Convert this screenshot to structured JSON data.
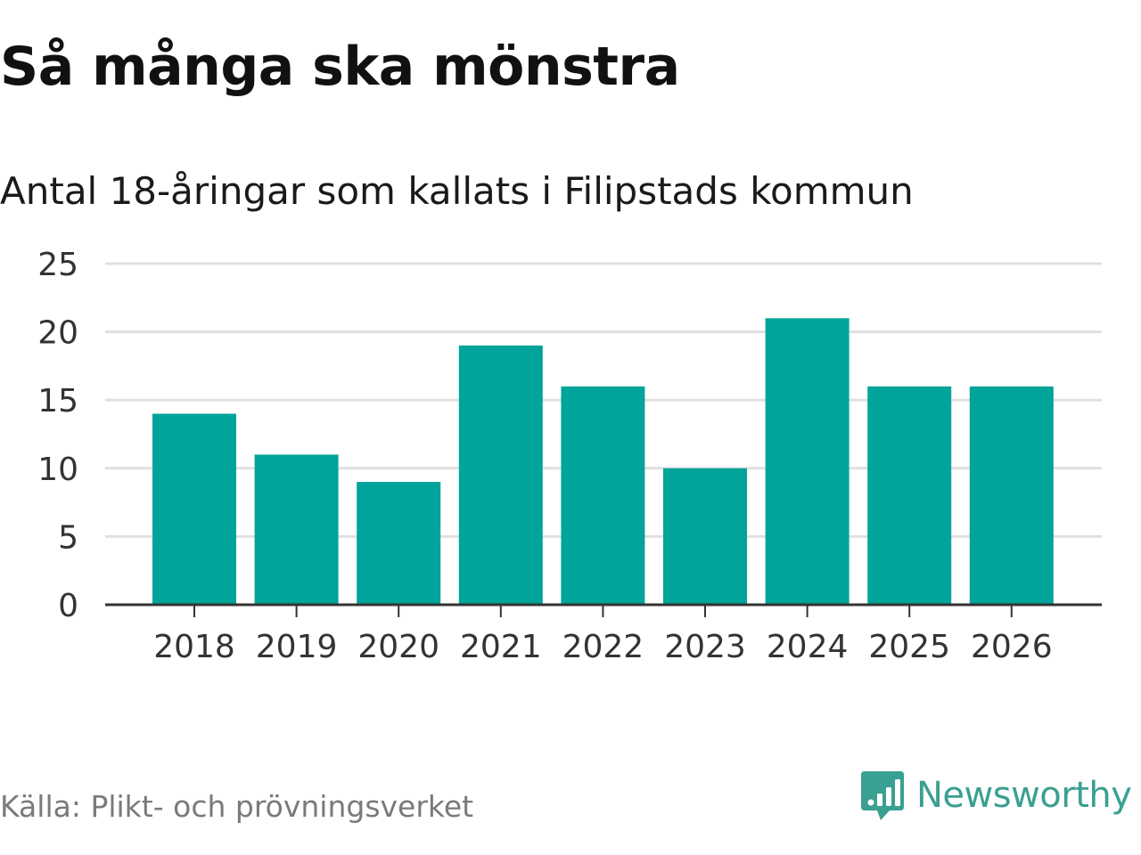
{
  "title": "Så många ska mönstra",
  "subtitle": "Antal 18-åringar som kallats i Filipstads kommun",
  "source": "Källa: Plikt- och prövningsverket",
  "brand": {
    "name": "Newsworthy",
    "icon": "newsworthy-logo-icon",
    "color": "#3aa091"
  },
  "colors": {
    "bar": "#00a49a",
    "grid": "#e0e0e0",
    "axis": "#333333"
  },
  "chart_data": {
    "type": "bar",
    "title": "Så många ska mönstra",
    "subtitle": "Antal 18-åringar som kallats i Filipstads kommun",
    "xlabel": "",
    "ylabel": "",
    "categories": [
      "2018",
      "2019",
      "2020",
      "2021",
      "2022",
      "2023",
      "2024",
      "2025",
      "2026"
    ],
    "values": [
      14,
      11,
      9,
      19,
      16,
      10,
      21,
      16,
      16
    ],
    "ylim": [
      0,
      25
    ],
    "yticks": [
      0,
      5,
      10,
      15,
      20,
      25
    ],
    "grid": true,
    "legend": false
  }
}
